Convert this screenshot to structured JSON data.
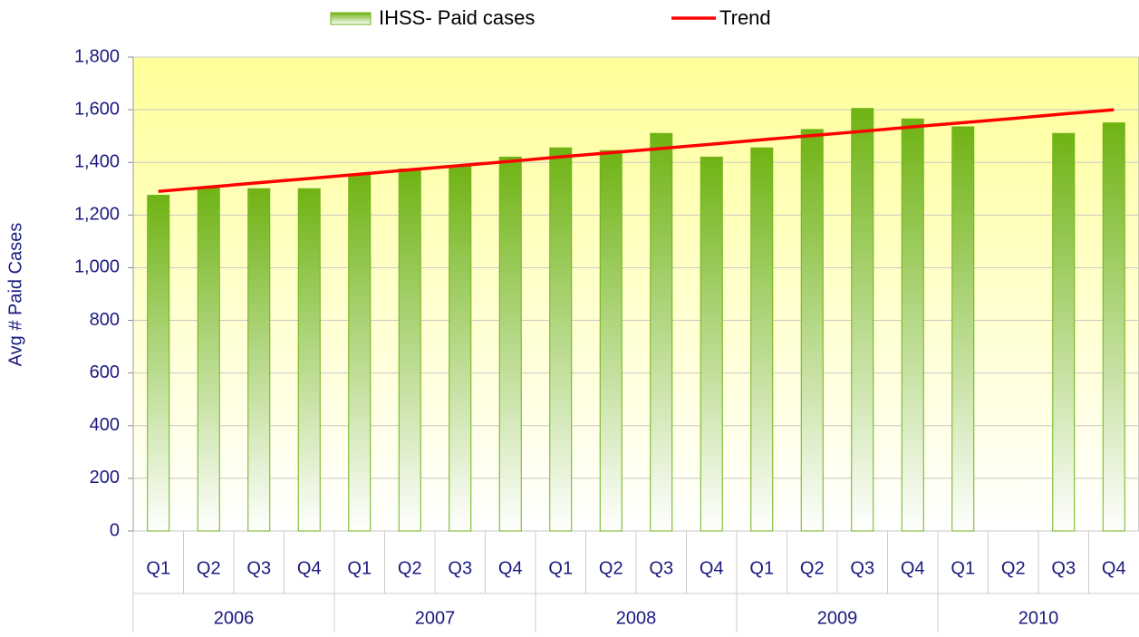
{
  "chart_data": {
    "type": "bar",
    "ylabel": "Avg # Paid Cases",
    "categories": [
      "Q1",
      "Q2",
      "Q3",
      "Q4",
      "Q1",
      "Q2",
      "Q3",
      "Q4",
      "Q1",
      "Q2",
      "Q3",
      "Q4",
      "Q1",
      "Q2",
      "Q3",
      "Q4",
      "Q1",
      "Q2",
      "Q3",
      "Q4"
    ],
    "category_groups": [
      "2006",
      "2007",
      "2008",
      "2009",
      "2010"
    ],
    "series": [
      {
        "name": "IHSS- Paid cases",
        "type": "bar",
        "color": "#6fb314",
        "values": [
          1275,
          1305,
          1300,
          1300,
          1355,
          1375,
          1385,
          1420,
          1455,
          1445,
          1510,
          1420,
          1455,
          1525,
          1605,
          1565,
          1535,
          null,
          1510,
          1550
        ]
      },
      {
        "name": "Trend",
        "type": "line",
        "color": "#ff0000",
        "values": [
          1290,
          1306,
          1323,
          1339,
          1355,
          1372,
          1388,
          1404,
          1421,
          1437,
          1453,
          1469,
          1486,
          1502,
          1518,
          1535,
          1551,
          1567,
          1584,
          1600
        ]
      }
    ],
    "ylim": [
      0,
      1800
    ],
    "yticks": [
      0,
      200,
      400,
      600,
      800,
      {
        "value": 1000,
        "label": "1,000"
      },
      {
        "value": 1200,
        "label": "1,200"
      },
      {
        "value": 1400,
        "label": "1,400"
      },
      {
        "value": 1600,
        "label": "1,600"
      },
      {
        "value": 1800,
        "label": "1,800"
      }
    ],
    "grid": true,
    "legend": "top"
  }
}
